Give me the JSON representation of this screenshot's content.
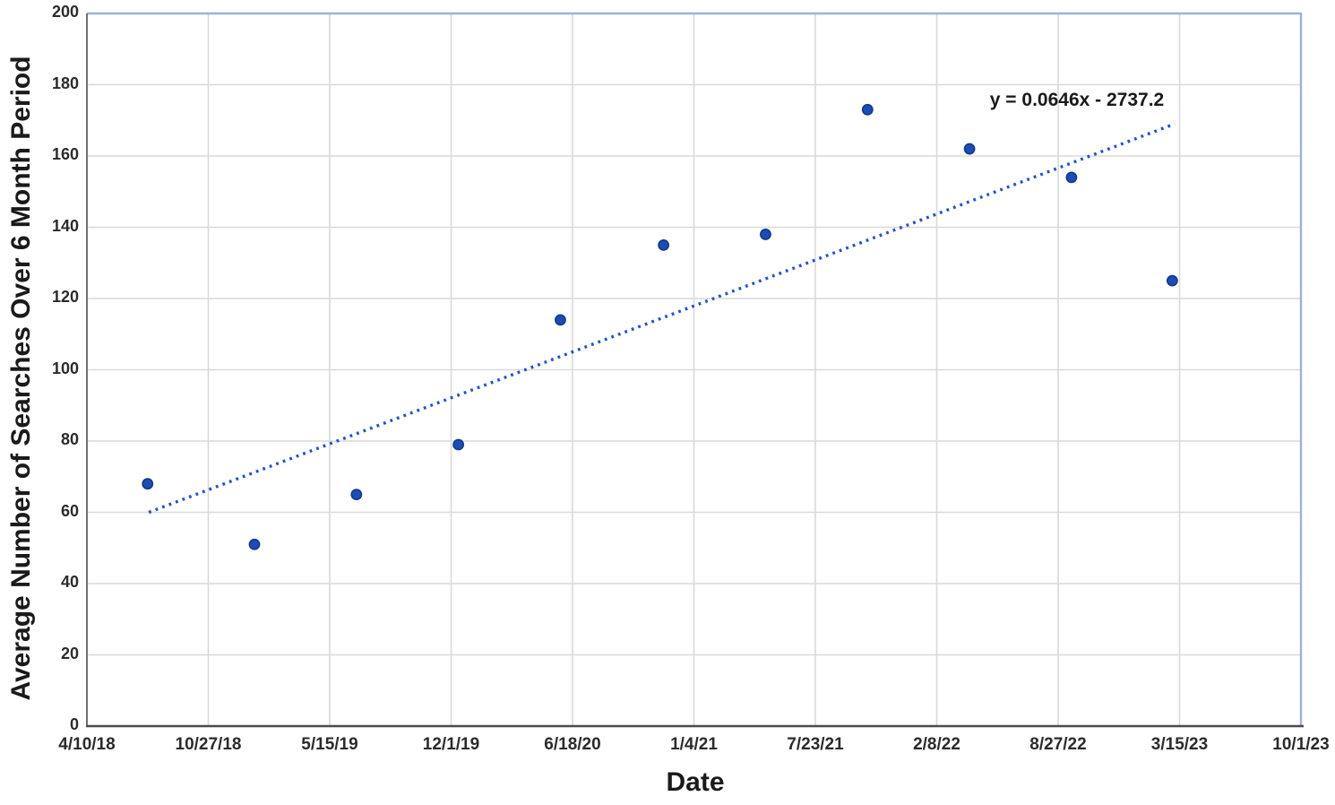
{
  "chart_data": {
    "type": "scatter",
    "title": "",
    "xlabel": "Date",
    "ylabel": "Average Number of Searches Over 6 Month Period",
    "x_tick_labels": [
      "4/10/18",
      "10/27/18",
      "5/15/19",
      "12/1/19",
      "6/18/20",
      "1/4/21",
      "7/23/21",
      "2/8/22",
      "8/27/22",
      "3/15/23",
      "10/1/23"
    ],
    "x_major_unit_days": 200,
    "y_ticks": [
      0,
      20,
      40,
      60,
      80,
      100,
      120,
      140,
      160,
      180,
      200
    ],
    "ylim": [
      0,
      200
    ],
    "grid": true,
    "legend": "none",
    "points": [
      {
        "x_frac": 0.05,
        "x_date_approx": "7/19/18",
        "y": 68
      },
      {
        "x_frac": 0.138,
        "x_date_approx": "1/11/19",
        "y": 51
      },
      {
        "x_frac": 0.222,
        "x_date_approx": "6/28/19",
        "y": 65
      },
      {
        "x_frac": 0.306,
        "x_date_approx": "12/13/19",
        "y": 79
      },
      {
        "x_frac": 0.39,
        "x_date_approx": "5/31/20",
        "y": 114
      },
      {
        "x_frac": 0.475,
        "x_date_approx": "11/15/20",
        "y": 135
      },
      {
        "x_frac": 0.559,
        "x_date_approx": "5/2/21",
        "y": 138
      },
      {
        "x_frac": 0.643,
        "x_date_approx": "10/17/21",
        "y": 173
      },
      {
        "x_frac": 0.727,
        "x_date_approx": "4/3/22",
        "y": 162
      },
      {
        "x_frac": 0.811,
        "x_date_approx": "9/18/22",
        "y": 154
      },
      {
        "x_frac": 0.894,
        "x_date_approx": "3/3/23",
        "y": 125
      }
    ],
    "trendline": {
      "equation_label": "y = 0.0646x - 2737.2",
      "style": "dotted",
      "start": {
        "x_frac": 0.051,
        "y": 60
      },
      "end": {
        "x_frac": 0.896,
        "y": 169
      }
    },
    "colors": {
      "point_fill": "#1d4cb5",
      "point_stroke": "#123a86",
      "trendline": "#2453c4",
      "gridline": "#d9d9d9",
      "plot_border": "#9fb0d8",
      "x_axis_line": "#4a4a4a",
      "y_axis_line": "#6f6f6f",
      "text": "#2b2b2b"
    }
  }
}
